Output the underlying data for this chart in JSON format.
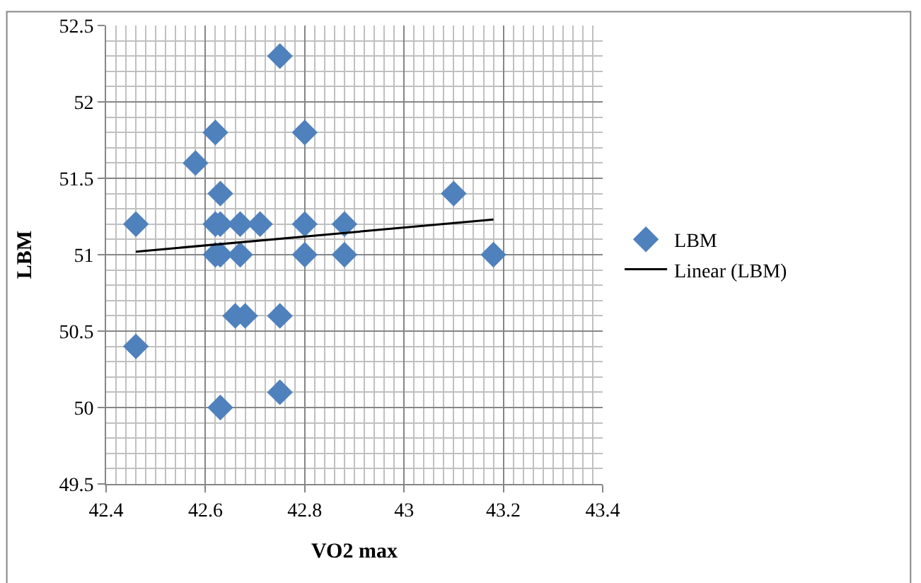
{
  "chart_data": {
    "type": "scatter",
    "xlabel": "VO2 max",
    "ylabel": "LBM",
    "xlim": [
      42.4,
      43.4
    ],
    "xticks": [
      42.4,
      42.6,
      42.8,
      43,
      43.2,
      43.4
    ],
    "ylim": [
      49.5,
      52.5
    ],
    "yticks": [
      49.5,
      50,
      50.5,
      51,
      51.5,
      52,
      52.5
    ],
    "grid": true,
    "legend": "right",
    "marker": "diamond",
    "series": [
      {
        "name": "LBM",
        "color": "#4f81bd",
        "x": [
          42.46,
          42.46,
          42.58,
          42.62,
          42.63,
          42.62,
          42.63,
          42.62,
          42.63,
          42.63,
          42.67,
          42.67,
          42.66,
          42.68,
          42.71,
          42.75,
          42.75,
          42.75,
          42.8,
          42.8,
          42.8,
          42.88,
          42.88,
          43.1,
          43.18
        ],
        "values": [
          51.2,
          50.4,
          51.6,
          51.8,
          51.4,
          51.2,
          51.2,
          51.0,
          51.0,
          50.0,
          51.2,
          51.0,
          50.6,
          50.6,
          51.2,
          52.3,
          50.6,
          50.1,
          51.8,
          51.2,
          51.0,
          51.2,
          51.0,
          51.4,
          51.0
        ]
      },
      {
        "name": "Linear (LBM)",
        "type": "line",
        "color": "#000000",
        "marker": "none",
        "x": [
          42.46,
          43.18
        ],
        "values": [
          51.02,
          51.23
        ]
      }
    ]
  }
}
